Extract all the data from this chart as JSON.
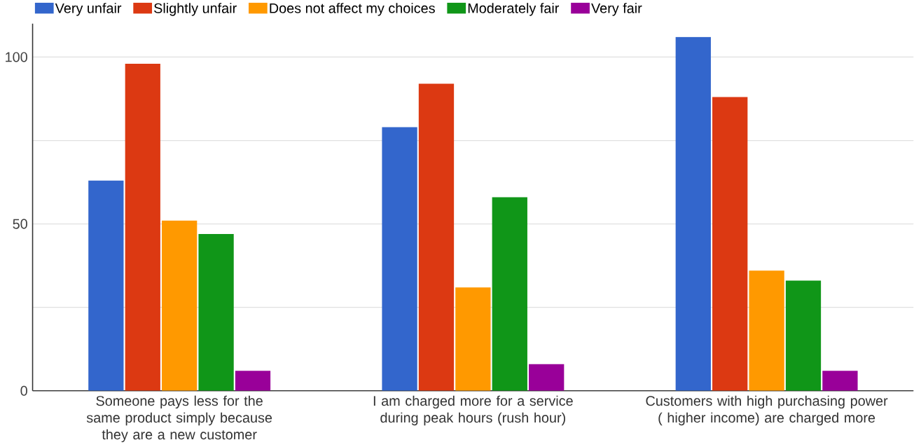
{
  "chart_data": {
    "type": "bar",
    "categories": [
      "Someone pays less for the same product simply because they are a new customer",
      "I am charged more for a service during peak hours (rush hour)",
      "Customers with high purchasing power ( higher income) are charged more"
    ],
    "series": [
      {
        "name": "Very unfair",
        "color": "#3366cc",
        "values": [
          63,
          79,
          106
        ]
      },
      {
        "name": "Slightly unfair",
        "color": "#dc3912",
        "values": [
          98,
          92,
          88
        ]
      },
      {
        "name": "Does not affect my choices",
        "color": "#ff9900",
        "values": [
          51,
          31,
          36
        ]
      },
      {
        "name": "Moderately fair",
        "color": "#109618",
        "values": [
          47,
          58,
          33
        ]
      },
      {
        "name": "Very fair",
        "color": "#990099",
        "values": [
          6,
          8,
          6
        ]
      }
    ],
    "yticks": [
      0,
      {
        "value": 25,
        "label": null
      },
      50,
      {
        "value": 75,
        "label": null
      },
      100
    ],
    "ylim": [
      0,
      110
    ],
    "grid": "y",
    "legend": "top"
  }
}
